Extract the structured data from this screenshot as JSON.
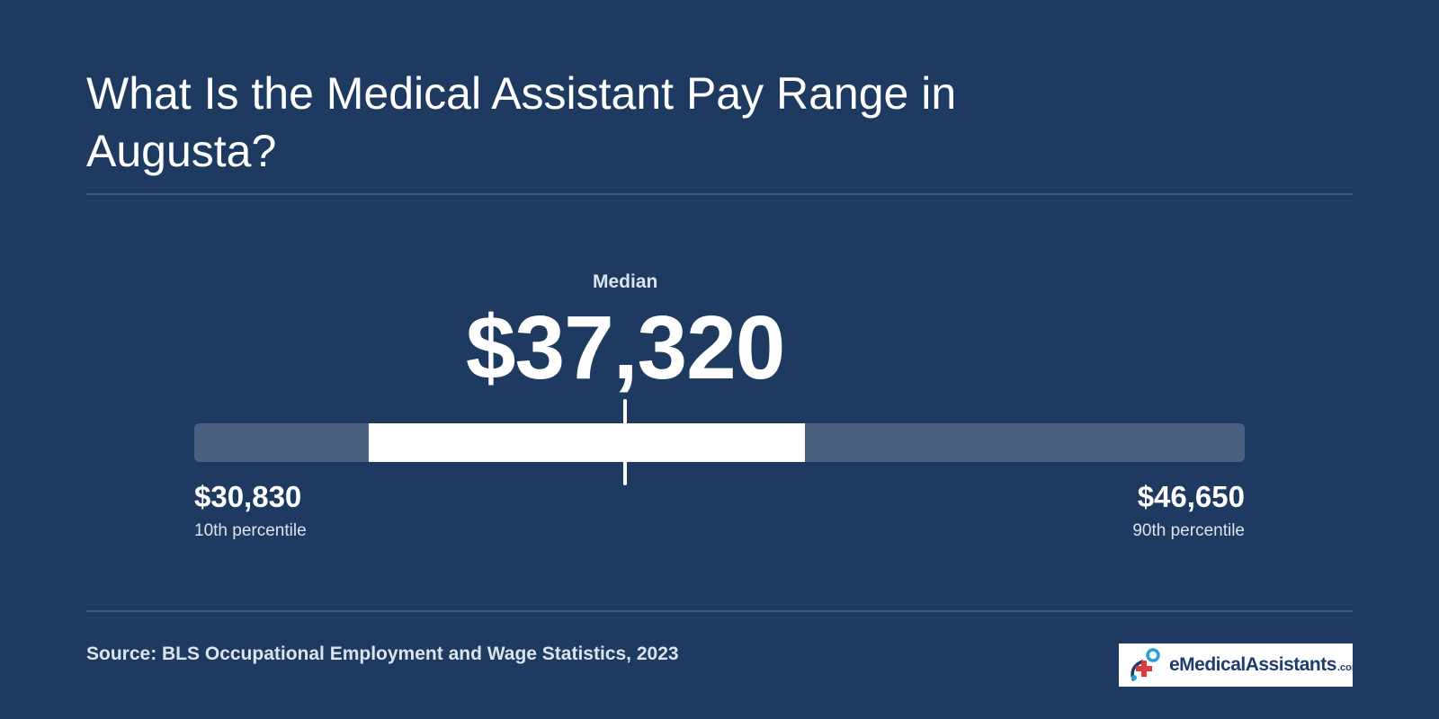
{
  "title": "What Is the Medical Assistant Pay Range in Augusta?",
  "chart_data": {
    "type": "range",
    "min": 30830,
    "p10": 30830,
    "p25": 33460,
    "median": 37320,
    "p75": 40030,
    "p90": 46650,
    "max": 46650,
    "median_label": "Median",
    "median_text": "$37,320",
    "low_value_text": "$30,830",
    "low_label": "10th percentile",
    "high_value_text": "$46,650",
    "high_label": "90th percentile"
  },
  "source": "Source: BLS Occupational Employment and Wage Statistics, 2023",
  "logo": {
    "text": "eMedicalAssistants",
    "suffix": ".com",
    "icon": "medical-cross-logo-icon"
  },
  "colors": {
    "background": "#1f3a60",
    "track": "#4a6080",
    "fill": "#ffffff",
    "text": "#ffffff",
    "muted_text": "#dbe3ee",
    "logo_text": "#1d3d6e",
    "logo_cross": "#e0393e",
    "logo_ring": "#2a9fd8"
  }
}
